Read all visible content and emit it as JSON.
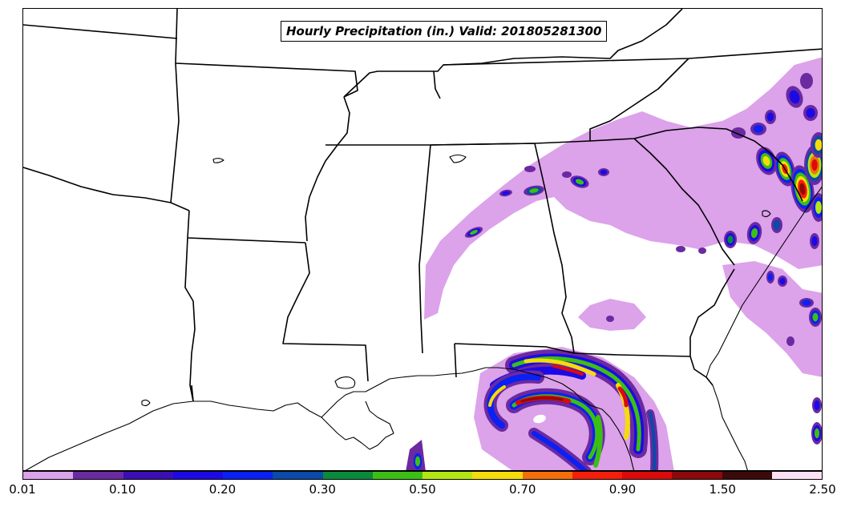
{
  "map": {
    "title": "Hourly Precipitation (in.) Valid: 201805281300",
    "region": "Southeastern United States",
    "land_color": "#ffffff",
    "boundary_color": "#000000"
  },
  "legend": {
    "colors": [
      "#dca2ea",
      "#6b2aa0",
      "#3c0fb5",
      "#1c0ae6",
      "#0a20f5",
      "#0a4aa8",
      "#0a8a3c",
      "#3cbf14",
      "#b4e614",
      "#f5dc0a",
      "#f56e0a",
      "#f51e0a",
      "#dc0a0a",
      "#8c0a0a",
      "#3c0a0a",
      "#fde0f5"
    ],
    "tick_labels": [
      "0.01",
      "0.10",
      "0.20",
      "0.30",
      "0.50",
      "0.70",
      "0.90",
      "1.50",
      "2.50"
    ]
  }
}
